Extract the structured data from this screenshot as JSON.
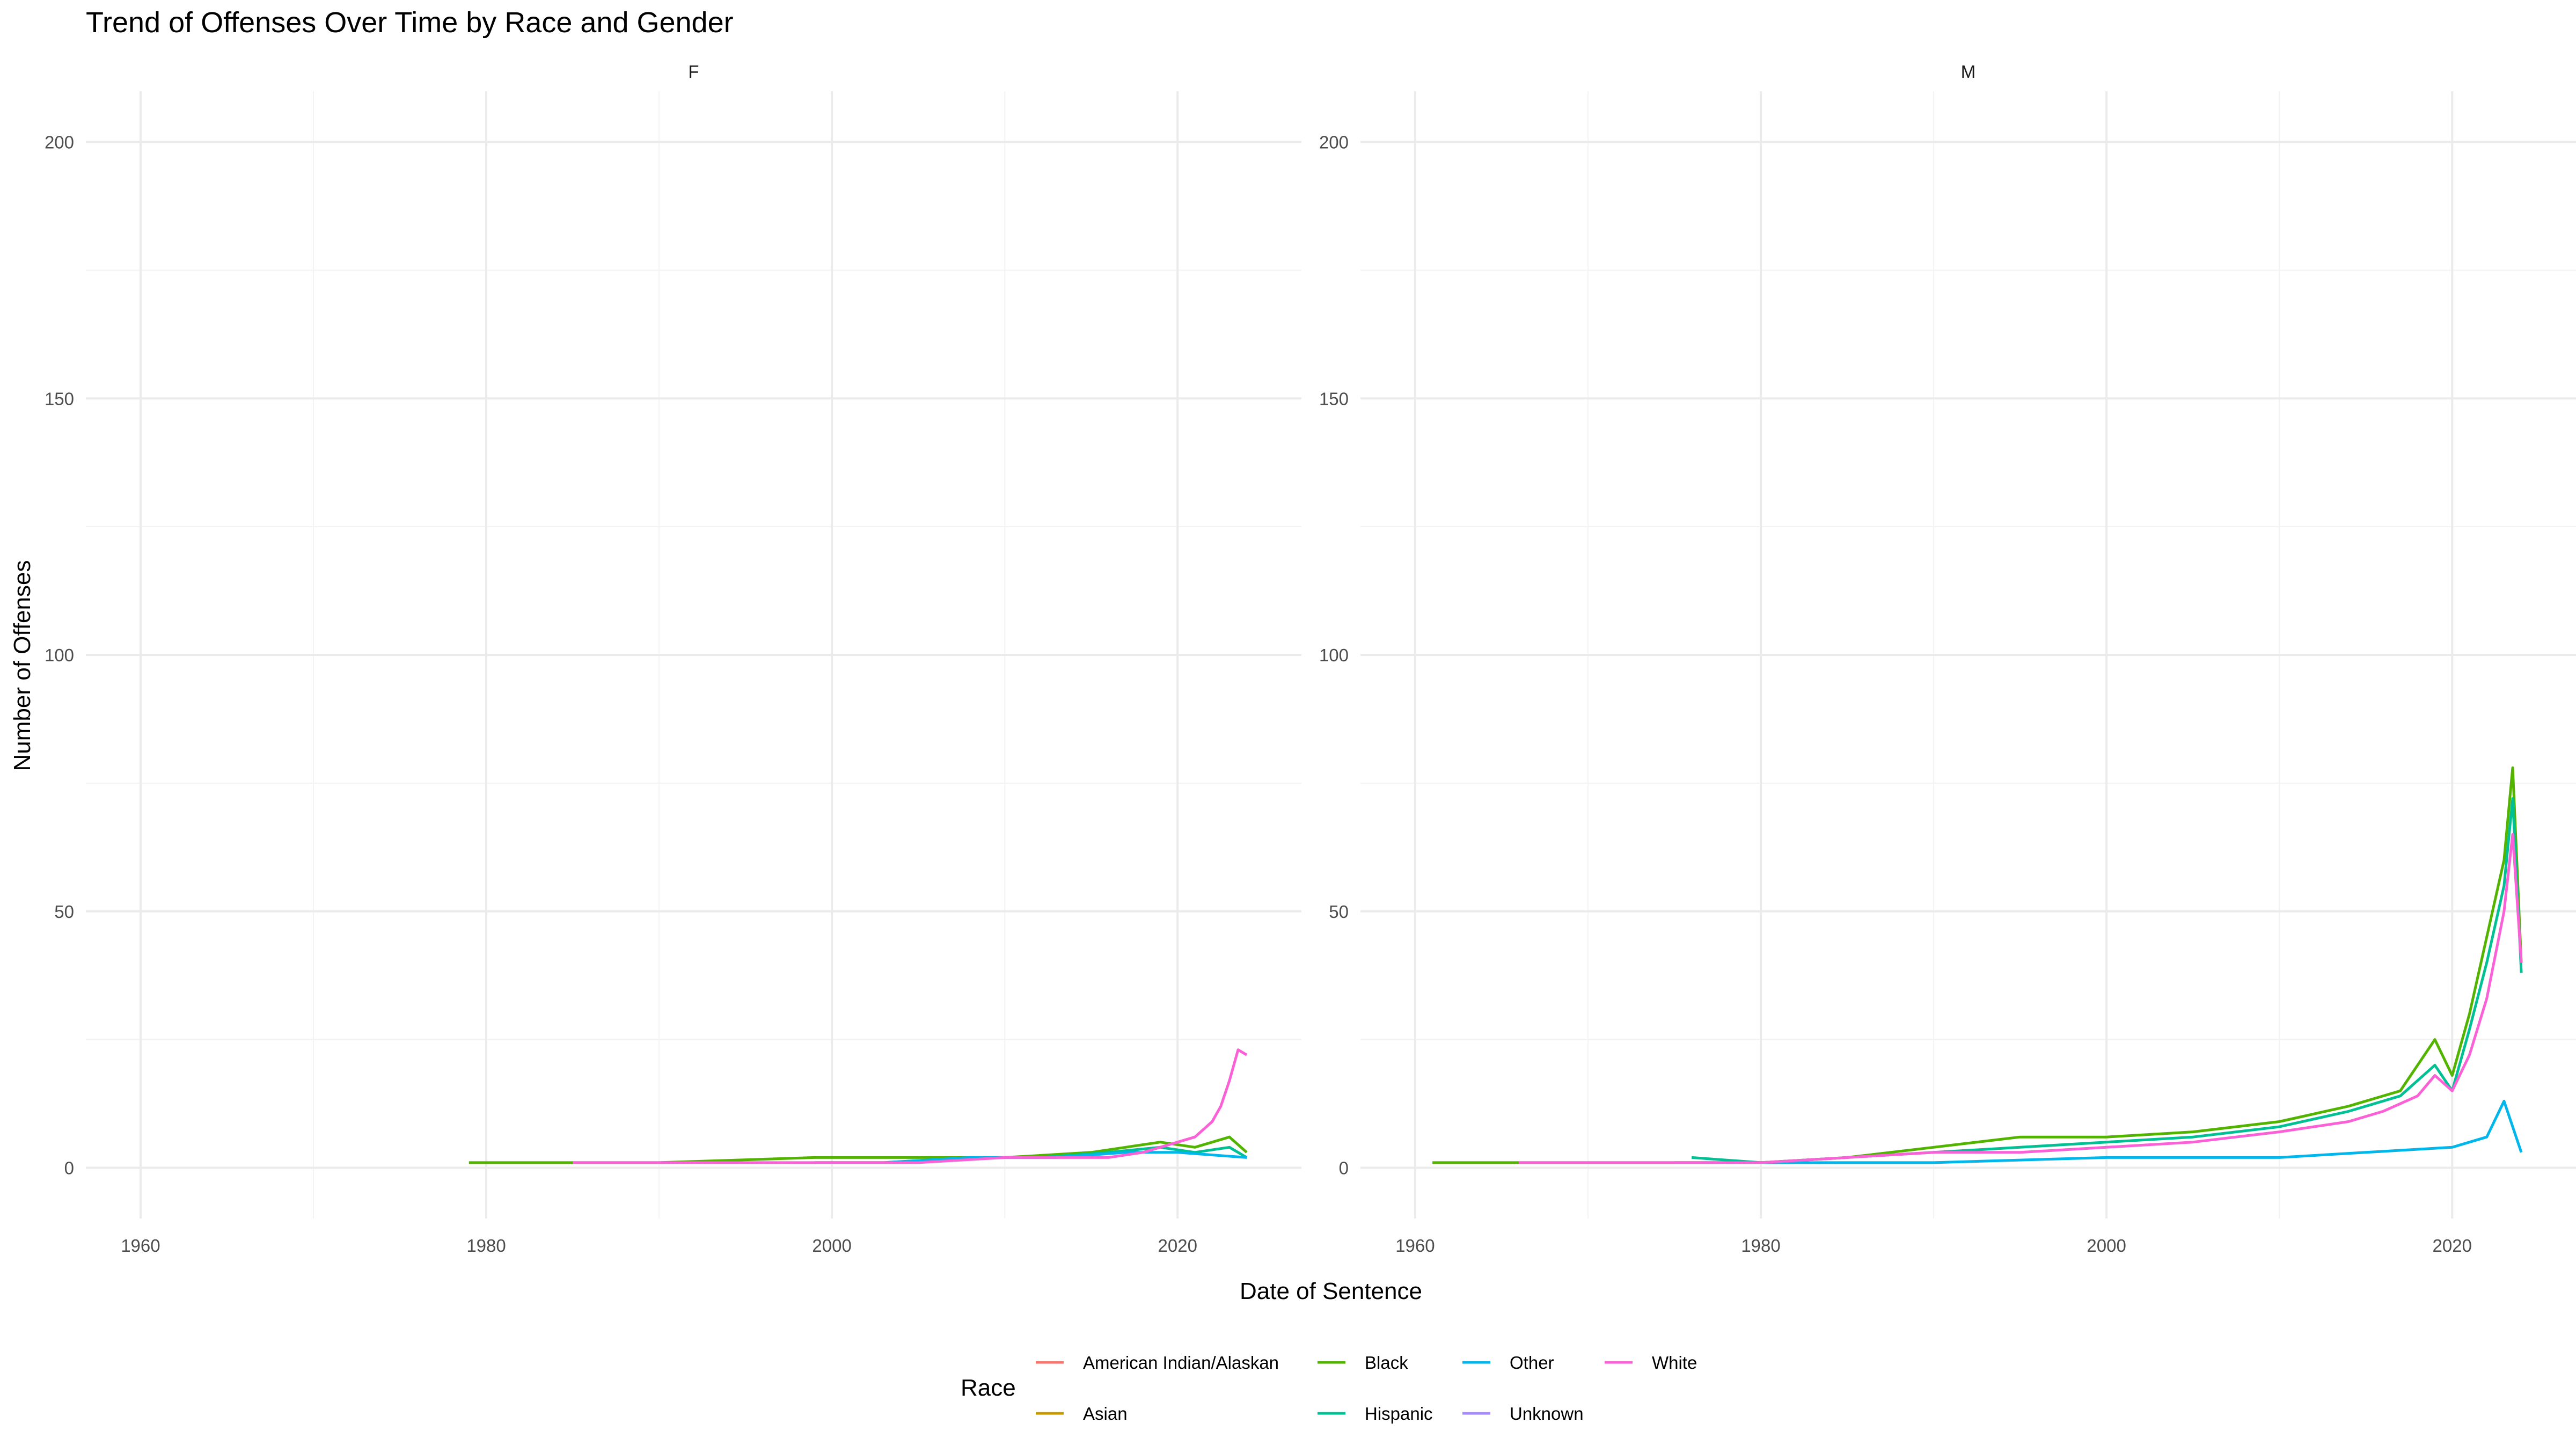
{
  "chart_data": {
    "type": "line",
    "title": "Trend of Offenses Over Time by Race and Gender",
    "xlabel": "Date of Sentence",
    "ylabel": "Number of Offenses",
    "xlim": [
      1960,
      2024
    ],
    "ylim": [
      0,
      200
    ],
    "x_ticks": [
      "1960",
      "1980",
      "2000",
      "2020"
    ],
    "y_ticks": [
      "0",
      "50",
      "100",
      "150",
      "200"
    ],
    "grid": true,
    "legend_title": "Race",
    "legend_position": "bottom",
    "legend": [
      {
        "name": "American Indian/Alaskan",
        "color": "#F8766D"
      },
      {
        "name": "Asian",
        "color": "#C49A00"
      },
      {
        "name": "Black",
        "color": "#53B400"
      },
      {
        "name": "Hispanic",
        "color": "#00C094"
      },
      {
        "name": "Other",
        "color": "#00B6EB"
      },
      {
        "name": "Unknown",
        "color": "#A58AFF"
      },
      {
        "name": "White",
        "color": "#FB61D7"
      }
    ],
    "panels": [
      {
        "label": "F",
        "series": [
          {
            "name": "Black",
            "x": [
              1979,
              1985,
              1990,
              1999,
              2005,
              2010,
              2015,
              2019,
              2021,
              2023,
              2024
            ],
            "y": [
              1,
              1,
              1,
              2,
              2,
              2,
              3,
              5,
              4,
              6,
              3
            ]
          },
          {
            "name": "Hispanic",
            "x": [
              1999,
              2003,
              2008,
              2012,
              2016,
              2019,
              2021,
              2023,
              2024
            ],
            "y": [
              1,
              1,
              2,
              2,
              3,
              4,
              3,
              4,
              2
            ]
          },
          {
            "name": "Other",
            "x": [
              1999,
              2003,
              2008,
              2013,
              2017,
              2020,
              2024
            ],
            "y": [
              1,
              1,
              2,
              2,
              3,
              3,
              2
            ]
          },
          {
            "name": "White",
            "x": [
              1985,
              1990,
              1995,
              2000,
              2005,
              2010,
              2013,
              2016,
              2018,
              2019,
              2020,
              2021,
              2022,
              2022.5,
              2023,
              2023.5,
              2024
            ],
            "y": [
              1,
              1,
              1,
              1,
              1,
              2,
              2,
              2,
              3,
              4,
              5,
              6,
              9,
              12,
              17,
              23,
              22
            ]
          }
        ]
      },
      {
        "label": "M",
        "series": [
          {
            "name": "Black",
            "x": [
              1961,
              1966,
              1975,
              1980,
              1985,
              1990,
              1995,
              2000,
              2005,
              2010,
              2014,
              2017,
              2019,
              2020,
              2021,
              2022,
              2023,
              2023.5,
              2024
            ],
            "y": [
              1,
              1,
              1,
              1,
              2,
              4,
              6,
              6,
              7,
              9,
              12,
              15,
              25,
              18,
              30,
              45,
              60,
              78,
              40
            ]
          },
          {
            "name": "Hispanic",
            "x": [
              1976,
              1980,
              1985,
              1990,
              1995,
              2000,
              2005,
              2010,
              2014,
              2017,
              2019,
              2020,
              2021,
              2022,
              2023,
              2023.5,
              2024
            ],
            "y": [
              2,
              1,
              2,
              3,
              4,
              5,
              6,
              8,
              11,
              14,
              20,
              15,
              27,
              40,
              55,
              72,
              38
            ]
          },
          {
            "name": "Other",
            "x": [
              1975,
              1990,
              2000,
              2010,
              2015,
              2020,
              2022,
              2023,
              2024
            ],
            "y": [
              1,
              1,
              2,
              2,
              3,
              4,
              6,
              13,
              3
            ]
          },
          {
            "name": "White",
            "x": [
              1966,
              1970,
              1975,
              1980,
              1985,
              1990,
              1995,
              2000,
              2005,
              2010,
              2014,
              2016,
              2018,
              2019,
              2020,
              2021,
              2022,
              2023,
              2023.5,
              2024
            ],
            "y": [
              1,
              1,
              1,
              1,
              2,
              3,
              3,
              4,
              5,
              7,
              9,
              11,
              14,
              18,
              15,
              22,
              33,
              50,
              65,
              40
            ]
          }
        ]
      }
    ]
  }
}
